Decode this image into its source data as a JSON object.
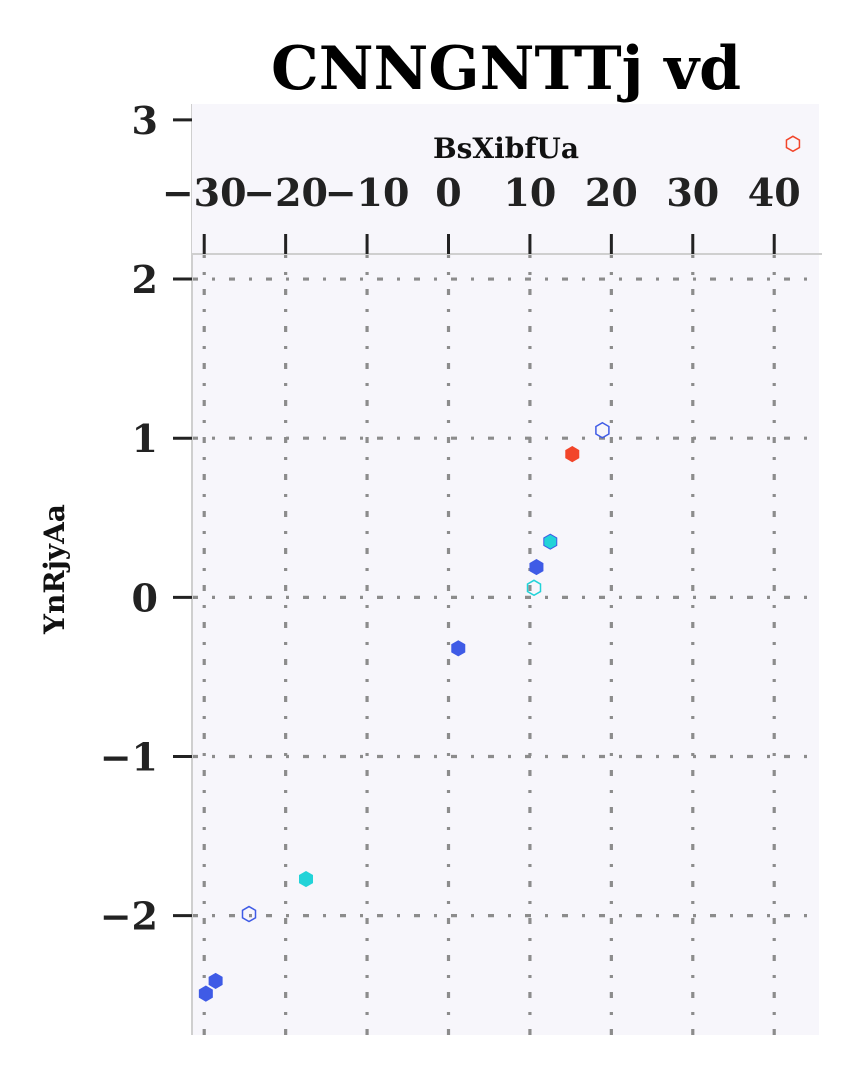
{
  "chart_data": {
    "type": "scatter",
    "title": "CNNGNTTj vd",
    "xlabel": "BsXibfUa",
    "ylabel": "YnRjyAa",
    "x_axis_position": "top",
    "xlim": [
      -31.5,
      45.5
    ],
    "ylim": [
      -2.75,
      3.1
    ],
    "xticks": [
      -30,
      -20,
      -10,
      0,
      10,
      20,
      30,
      40
    ],
    "xtick_labels": [
      "−30",
      "−20",
      "−10",
      "0",
      "10",
      "20",
      "30",
      "40"
    ],
    "yticks": [
      -2,
      -1,
      0,
      1,
      2,
      3
    ],
    "ytick_labels": [
      "−2",
      "−1",
      "0",
      "1",
      "2",
      "3"
    ],
    "grid": true,
    "grid_style": "dash-dot",
    "marker": "hexagon",
    "colors": {
      "blue": "#3f5be6",
      "cyan": "#22d3d8",
      "red": "#f2452a",
      "background": "#f7f6fb",
      "grid": "#8c8c8c"
    },
    "points": [
      {
        "x": -29.8,
        "y": -2.49,
        "color": "#3f5be6",
        "filled": true
      },
      {
        "x": -28.6,
        "y": -2.41,
        "color": "#3f5be6",
        "filled": true
      },
      {
        "x": -24.5,
        "y": -1.99,
        "color": "#3f5be6",
        "filled": false
      },
      {
        "x": -17.5,
        "y": -1.77,
        "color": "#22d3d8",
        "filled": true
      },
      {
        "x": 1.2,
        "y": -0.32,
        "color": "#3f5be6",
        "filled": true
      },
      {
        "x": 10.5,
        "y": 0.06,
        "color": "#22d3d8",
        "filled": false
      },
      {
        "x": 10.8,
        "y": 0.19,
        "color": "#3f5be6",
        "filled": true
      },
      {
        "x": 12.5,
        "y": 0.35,
        "color": "#22d3d8",
        "filled": true,
        "edge": "#3f5be6"
      },
      {
        "x": 15.2,
        "y": 0.9,
        "color": "#f2452a",
        "filled": true
      },
      {
        "x": 18.9,
        "y": 1.05,
        "color": "#3f5be6",
        "filled": false
      },
      {
        "x": 42.3,
        "y": 2.85,
        "color": "#f2452a",
        "filled": false
      }
    ]
  }
}
